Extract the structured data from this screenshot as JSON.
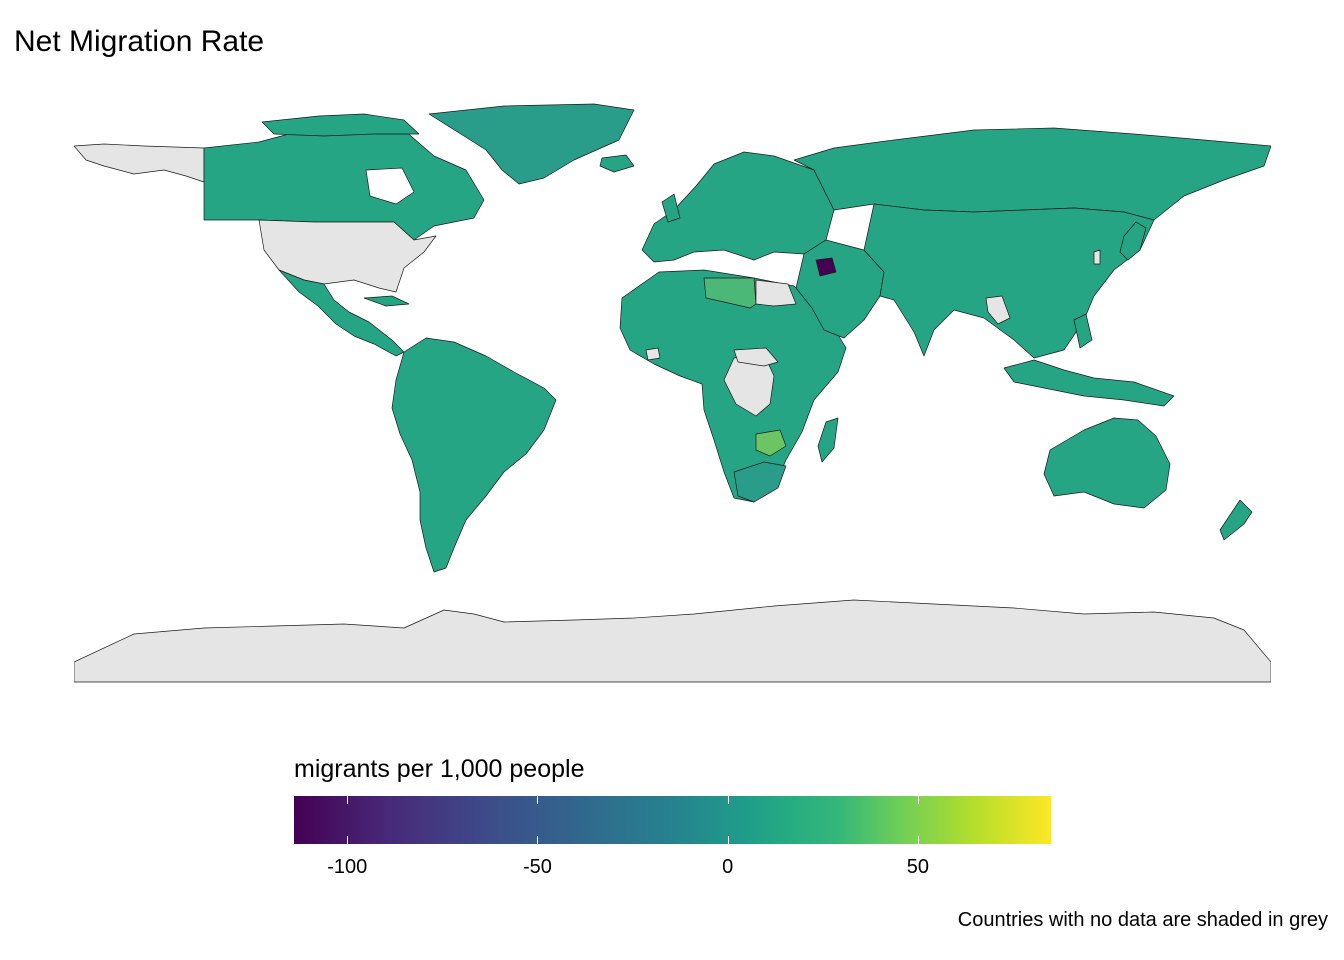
{
  "title": "Net Migration Rate",
  "legend": {
    "title": "migrants per 1,000 people",
    "colors": [
      "#440154",
      "#3e4a89",
      "#26828e",
      "#25ab82",
      "#6ece58",
      "#fde725"
    ],
    "no_data_color": "#e5e5e5",
    "range": [
      -114,
      85
    ],
    "ticks": [
      {
        "value": -100,
        "label": "-100"
      },
      {
        "value": -50,
        "label": "-50"
      },
      {
        "value": 0,
        "label": "0"
      },
      {
        "value": 50,
        "label": "50"
      }
    ]
  },
  "caption": "Countries with no data are shaded in grey",
  "chart_data": {
    "type": "choropleth",
    "title": "Net Migration Rate",
    "legend_title": "migrants per 1,000 people",
    "scale": "viridis",
    "legend_position": "bottom",
    "highlighted_regions": [
      {
        "region": "Syria",
        "approx_value": -113
      },
      {
        "region": "Libya",
        "approx_value": 12
      },
      {
        "region": "Zimbabwe",
        "approx_value": 15
      },
      {
        "region": "South Africa",
        "approx_value": -5
      },
      {
        "region": "Greenland",
        "approx_value": -5
      }
    ],
    "no_data_regions": [
      "United States",
      "Alaska",
      "Antarctica",
      "Democratic Republic of the Congo",
      "South Sudan",
      "Egypt",
      "Western Sahara",
      "Sierra Leone",
      "Laos",
      "Taiwan"
    ]
  }
}
